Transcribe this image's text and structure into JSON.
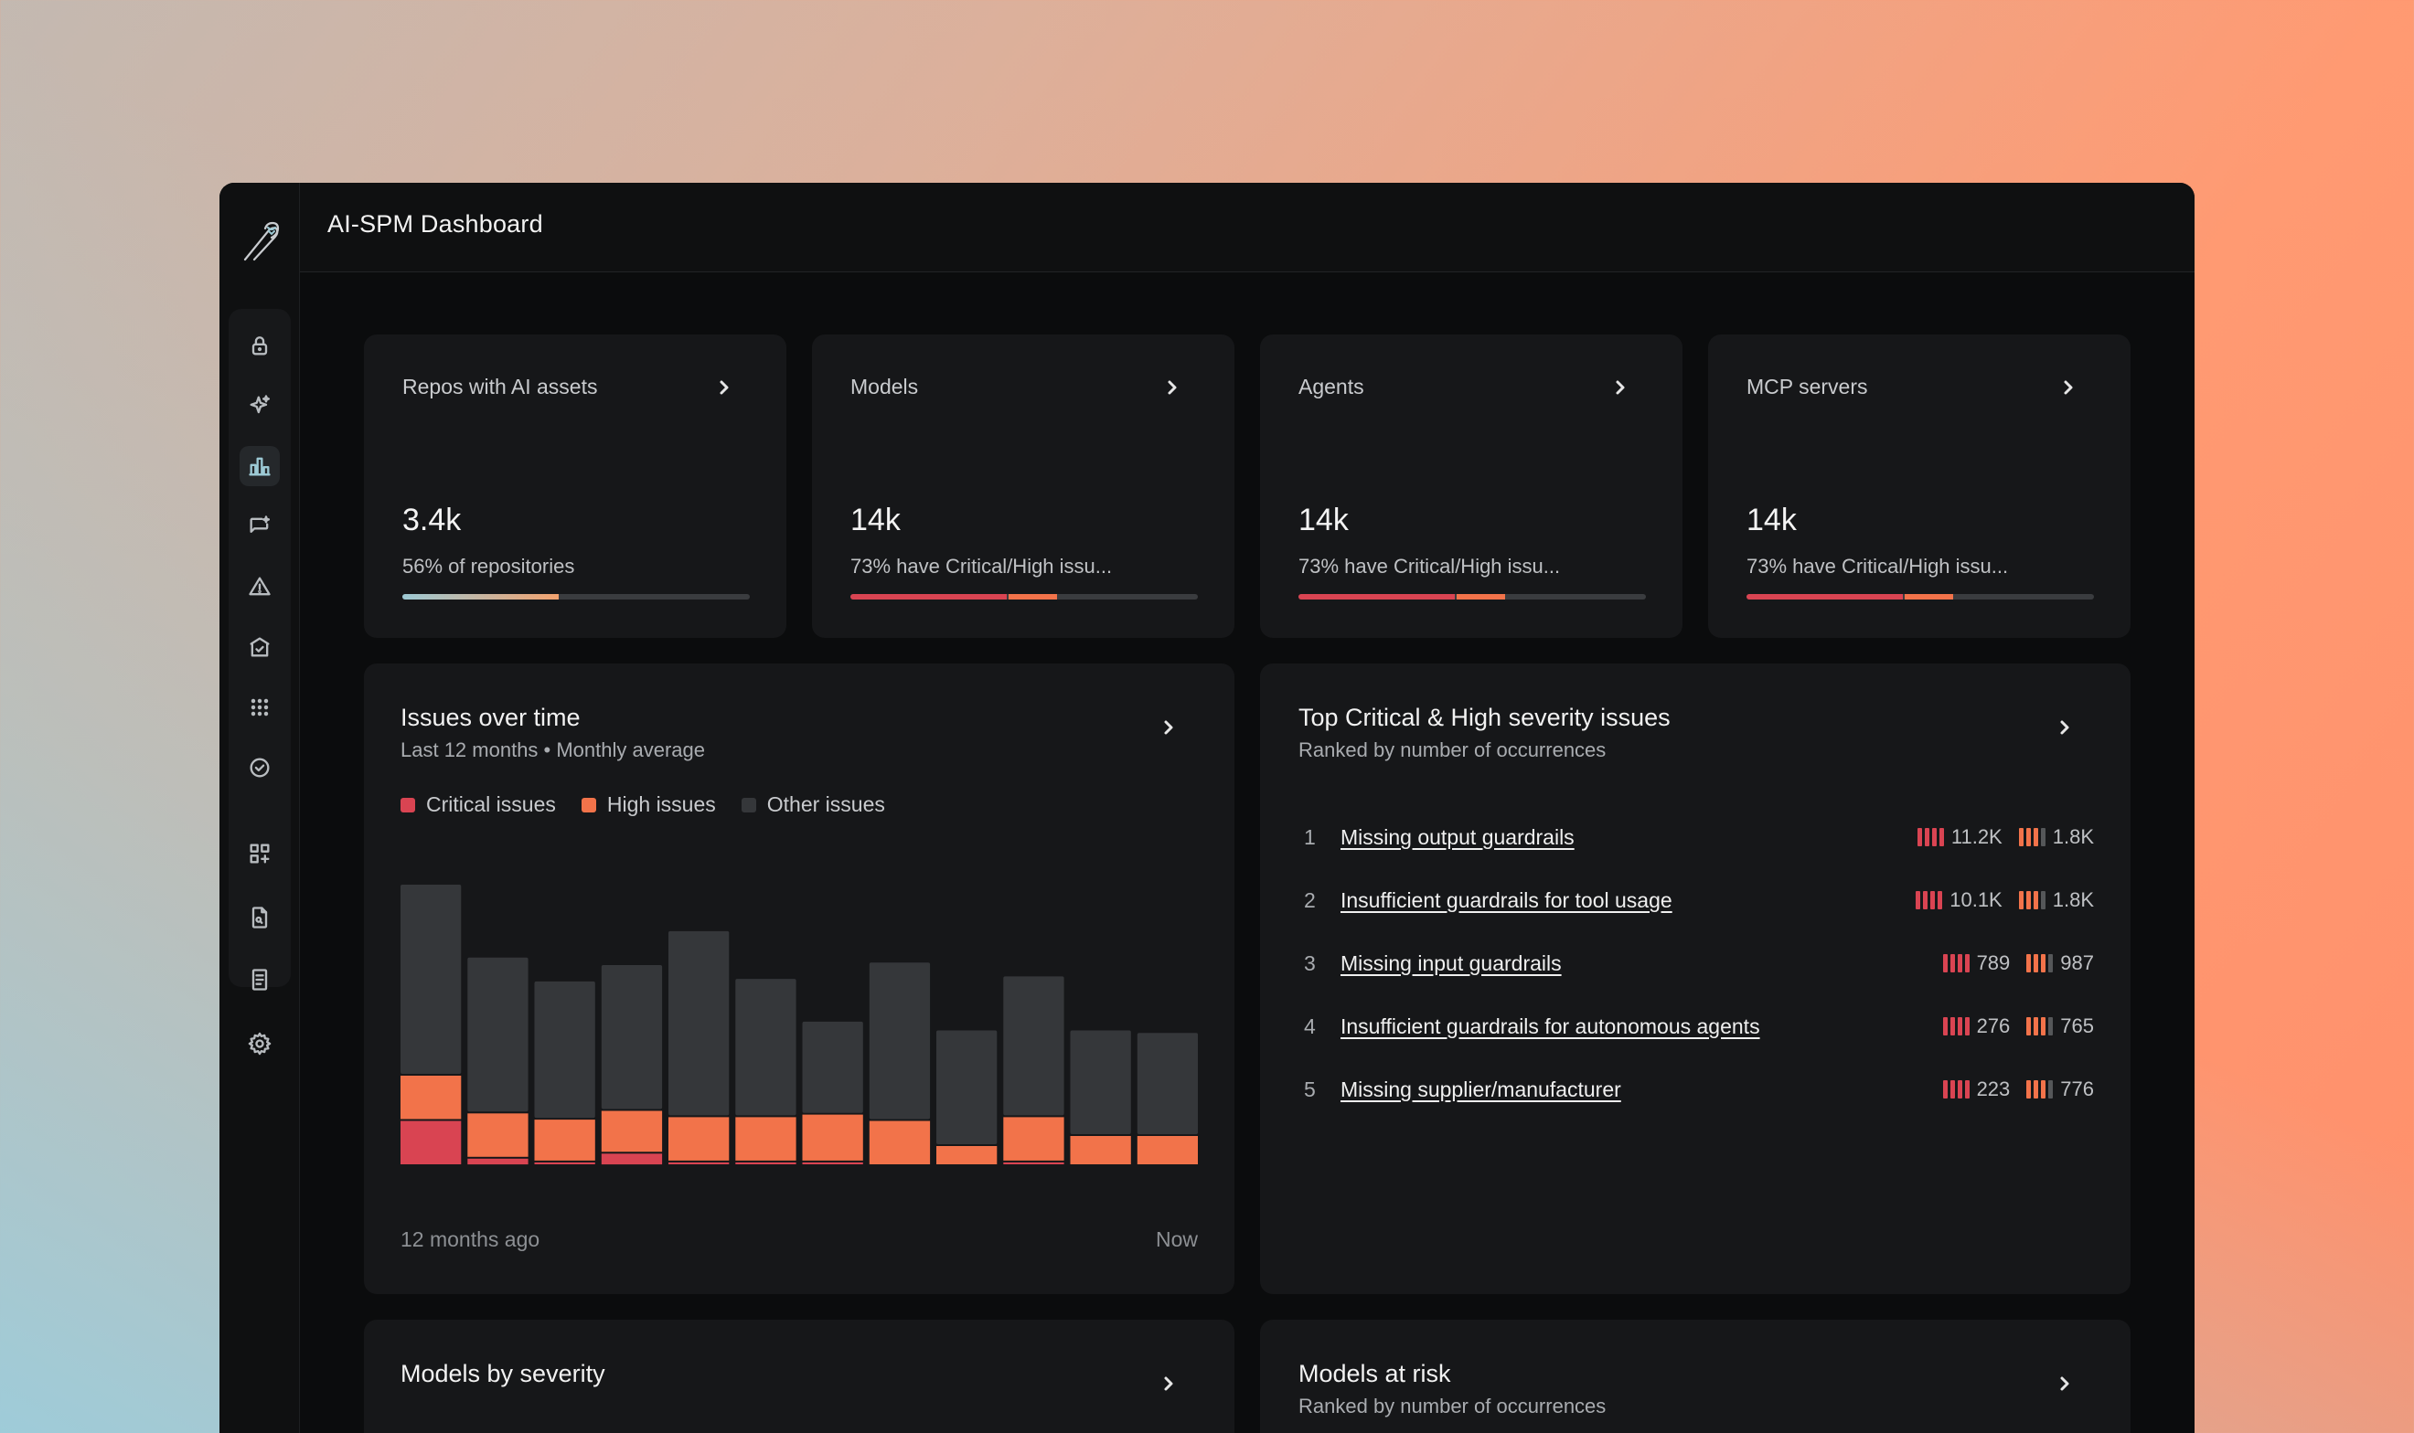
{
  "colors": {
    "critical": "#d94452",
    "high": "#f2734a",
    "other": "#35373a",
    "accent": "#9cc9d4"
  },
  "header": {
    "title": "AI-SPM Dashboard"
  },
  "sidebar": {
    "items": [
      {
        "icon": "lock-icon"
      },
      {
        "icon": "sparkle-icon"
      },
      {
        "icon": "bar-chart-icon",
        "active": true
      },
      {
        "icon": "chat-sparkle-icon"
      },
      {
        "icon": "warning-icon"
      },
      {
        "icon": "building-check-icon"
      },
      {
        "icon": "grid-dots-icon"
      },
      {
        "icon": "check-circle-icon"
      },
      {
        "icon": "apps-add-icon"
      },
      {
        "icon": "file-search-icon"
      },
      {
        "icon": "document-list-icon"
      },
      {
        "icon": "gear-icon"
      }
    ]
  },
  "stats": [
    {
      "label": "Repos with AI assets",
      "value": "3.4k",
      "sub": "56% of repositories",
      "segments": [
        {
          "pct": 45,
          "color": "gradient"
        }
      ]
    },
    {
      "label": "Models",
      "value": "14k",
      "sub": "73% have Critical/High issu...",
      "segments": [
        {
          "pct": 45,
          "color": "#d94452"
        },
        {
          "pct": 14,
          "color": "#f2734a"
        }
      ]
    },
    {
      "label": "Agents",
      "value": "14k",
      "sub": "73% have Critical/High issu...",
      "segments": [
        {
          "pct": 45,
          "color": "#d94452"
        },
        {
          "pct": 14,
          "color": "#f2734a"
        }
      ]
    },
    {
      "label": "MCP servers",
      "value": "14k",
      "sub": "73% have Critical/High issu...",
      "segments": [
        {
          "pct": 45,
          "color": "#d94452"
        },
        {
          "pct": 14,
          "color": "#f2734a"
        }
      ]
    }
  ],
  "issues_over_time": {
    "title": "Issues over time",
    "subtitle": "Last 12 months • Monthly average",
    "legend": [
      "Critical issues",
      "High issues",
      "Other issues"
    ],
    "x_start": "12 months ago",
    "x_end": "Now"
  },
  "chart_data": {
    "type": "bar",
    "stacked": true,
    "title": "Issues over time",
    "categories": [
      "1",
      "2",
      "3",
      "4",
      "5",
      "6",
      "7",
      "8",
      "9",
      "10",
      "11",
      "12"
    ],
    "series": [
      {
        "name": "Critical issues",
        "values": [
          18,
          3,
          1.5,
          5,
          1.5,
          1.5,
          1.5,
          0,
          0,
          1.5,
          0,
          0
        ]
      },
      {
        "name": "High issues",
        "values": [
          18,
          18,
          17,
          17,
          18,
          18,
          19,
          18,
          8,
          18,
          12,
          12
        ]
      },
      {
        "name": "Other issues",
        "values": [
          76,
          62,
          55,
          58,
          74,
          55,
          37,
          63,
          46,
          56,
          42,
          41
        ]
      }
    ],
    "ylim": [
      0,
      120
    ]
  },
  "top_issues": {
    "title": "Top Critical & High severity issues",
    "subtitle": "Ranked by number of occurrences",
    "rows": [
      {
        "rank": "1",
        "name": "Missing output guardrails",
        "critical": "11.2K",
        "high": "1.8K"
      },
      {
        "rank": "2",
        "name": "Insufficient guardrails for tool usage",
        "critical": "10.1K",
        "high": "1.8K"
      },
      {
        "rank": "3",
        "name": "Missing input guardrails",
        "critical": "789",
        "high": "987"
      },
      {
        "rank": "4",
        "name": "Insufficient guardrails for autonomous agents",
        "critical": "276",
        "high": "765"
      },
      {
        "rank": "5",
        "name": "Missing supplier/manufacturer",
        "critical": "223",
        "high": "776"
      }
    ]
  },
  "models_by_severity": {
    "title": "Models by severity"
  },
  "models_at_risk": {
    "title": "Models at risk",
    "subtitle": "Ranked by number of occurrences"
  }
}
